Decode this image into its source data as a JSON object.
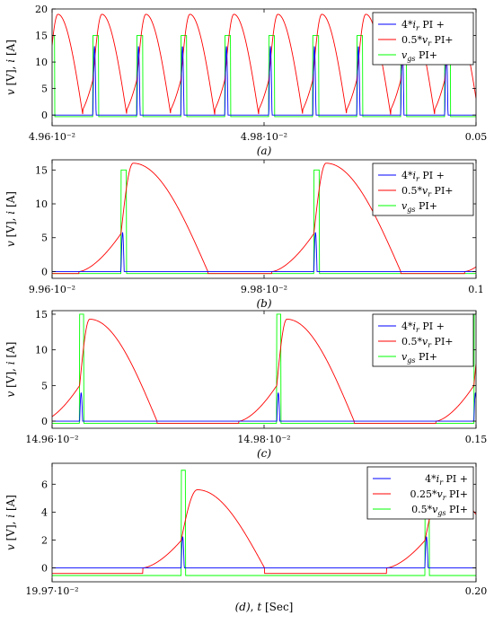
{
  "colors": {
    "blue": "#0000ff",
    "red": "#ff0000",
    "green": "#00ff00",
    "axis": "#000000"
  },
  "chart_data": [
    {
      "type": "line",
      "caption": "(a)",
      "ylabel": "v [V], i [A]",
      "xlim": [
        0.0496,
        0.05
      ],
      "ylim": [
        -2,
        20
      ],
      "xticks": [
        {
          "v": 0.0496,
          "label": "4.96·10⁻²"
        },
        {
          "v": 0.0498,
          "label": "4.98·10⁻²"
        },
        {
          "v": 0.05,
          "label": "0.05"
        }
      ],
      "yticks": [
        {
          "v": 0,
          "label": "0"
        },
        {
          "v": 5,
          "label": "5"
        },
        {
          "v": 10,
          "label": "10"
        },
        {
          "v": 15,
          "label": "15"
        },
        {
          "v": 20,
          "label": "20"
        }
      ],
      "legend": [
        "4*i_r PI +",
        "0.5*v_r PI+",
        "v_gs PI+"
      ],
      "params": {
        "period": 4.15e-05,
        "phase": 4.5e-06,
        "gateWidth": 5.5e-06,
        "gateHigh": 15,
        "gateLow": -0.3,
        "redPeak": 19,
        "redPeakOffset": 8.5e-06,
        "redZeroOffset": 3.2e-05,
        "bluePeak": 13,
        "blueWidth": 3e-06
      }
    },
    {
      "type": "line",
      "caption": "(b)",
      "ylabel": "v [V], i [A]",
      "xlim": [
        0.0996,
        0.1
      ],
      "ylim": [
        -1,
        16.5
      ],
      "xticks": [
        {
          "v": 0.0996,
          "label": "9.96·10⁻²"
        },
        {
          "v": 0.0998,
          "label": "9.98·10⁻²"
        },
        {
          "v": 0.1,
          "label": "0.1"
        }
      ],
      "yticks": [
        {
          "v": 0,
          "label": "0"
        },
        {
          "v": 5,
          "label": "5"
        },
        {
          "v": 10,
          "label": "10"
        },
        {
          "v": 15,
          "label": "15"
        }
      ],
      "legend": [
        "4*i_r PI +",
        "0.5*v_r PI+",
        "v_gs PI+"
      ],
      "params": {
        "period": 0.000182,
        "phase": 0.000111,
        "gateWidth": 5e-06,
        "gateHigh": 15,
        "gateLow": -0.3,
        "redPeak": 16,
        "redPeakOffset": 1.15e-05,
        "redZeroOffset": 8.2e-05,
        "bluePeak": 5.8,
        "blueWidth": 3e-06
      }
    },
    {
      "type": "line",
      "caption": "(c)",
      "ylabel": "v [V], i [A]",
      "xlim": [
        0.1496,
        0.15
      ],
      "ylim": [
        -1,
        15.5
      ],
      "xticks": [
        {
          "v": 0.1496,
          "label": "14.96·10⁻²"
        },
        {
          "v": 0.1498,
          "label": "14.98·10⁻²"
        },
        {
          "v": 0.15,
          "label": "0.15"
        }
      ],
      "yticks": [
        {
          "v": 0,
          "label": "0"
        },
        {
          "v": 5,
          "label": "5"
        },
        {
          "v": 10,
          "label": "10"
        },
        {
          "v": 15,
          "label": "15"
        }
      ],
      "legend": [
        "4*i_r PI +",
        "0.5*v_r PI+",
        "v_gs PI+"
      ],
      "params": {
        "period": 0.000186,
        "phase": 8.2e-05,
        "gateWidth": 4e-06,
        "gateHigh": 15,
        "gateLow": -0.3,
        "redPeak": 14.3,
        "redPeakOffset": 9.5e-06,
        "redZeroOffset": 7.3e-05,
        "bluePeak": 4,
        "blueWidth": 2.8e-06
      }
    },
    {
      "type": "line",
      "caption": "(d), t [Sec]",
      "ylabel": "v [V], i [A]",
      "xlim": [
        0.1997,
        0.2
      ],
      "ylim": [
        -1,
        7.5
      ],
      "xticks": [
        {
          "v": 0.1997,
          "label": "19.97·10⁻²"
        },
        {
          "v": 0.2,
          "label": "0.20"
        }
      ],
      "yticks": [
        {
          "v": 0,
          "label": "0"
        },
        {
          "v": 2,
          "label": "2"
        },
        {
          "v": 4,
          "label": "4"
        },
        {
          "v": 6,
          "label": "6"
        }
      ],
      "legend": [
        "4*i_r PI +",
        "0.25*v_r PI+",
        "0.5*v_gs PI+"
      ],
      "params": {
        "period": 0.0001725,
        "phase": 3.63e-05,
        "gateWidth": 3.2e-06,
        "gateHigh": 7,
        "gateLow": -0.55,
        "redPeak": 5.6,
        "redPeakOffset": 1.15e-05,
        "redZeroOffset": 5.9e-05,
        "bluePeak": 2.25,
        "blueWidth": 2.2e-06,
        "blueBase": 0
      }
    }
  ]
}
